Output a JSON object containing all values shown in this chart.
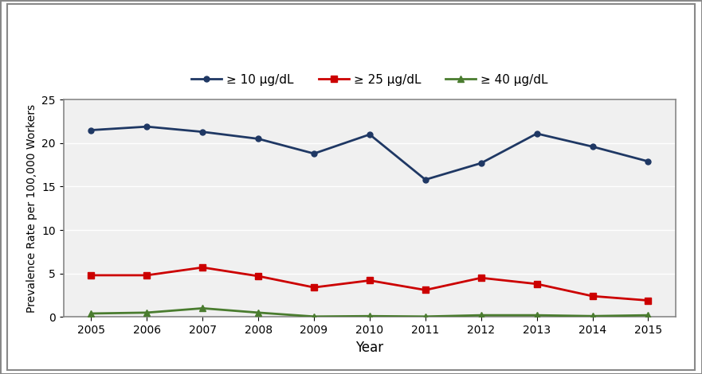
{
  "years": [
    2005,
    2006,
    2007,
    2008,
    2009,
    2010,
    2011,
    2012,
    2013,
    2014,
    2015
  ],
  "series_10": [
    21.5,
    21.9,
    21.3,
    20.5,
    18.8,
    21.0,
    15.8,
    17.7,
    21.1,
    19.6,
    17.9
  ],
  "series_25": [
    4.8,
    4.8,
    5.7,
    4.7,
    3.4,
    4.2,
    3.1,
    4.5,
    3.8,
    2.4,
    1.9
  ],
  "series_40": [
    0.4,
    0.5,
    1.0,
    0.5,
    0.05,
    0.1,
    0.05,
    0.2,
    0.2,
    0.1,
    0.2
  ],
  "color_10": "#1f3864",
  "color_25": "#cc0000",
  "color_40": "#4a7c2f",
  "label_10": "≥ 10 μg/dL",
  "label_25": "≥ 25 μg/dL",
  "label_40": "≥ 40 μg/dL",
  "xlabel": "Year",
  "ylabel": "Prevalence Rate per 100,000 Workers",
  "ylim": [
    0,
    25
  ],
  "yticks": [
    0,
    5,
    10,
    15,
    20,
    25
  ],
  "outer_background": "#ffffff",
  "plot_background": "#f0f0f0",
  "grid_color": "#ffffff",
  "border_color": "#888888",
  "fig_border_color": "#888888"
}
